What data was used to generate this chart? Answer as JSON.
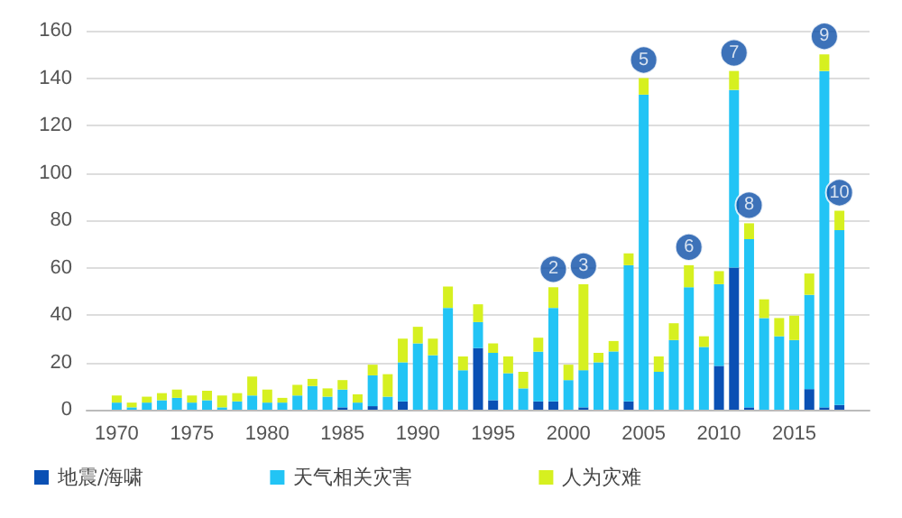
{
  "chart_data": {
    "type": "bar",
    "stacked": true,
    "x": [
      1970,
      1971,
      1972,
      1973,
      1974,
      1975,
      1976,
      1977,
      1978,
      1979,
      1980,
      1981,
      1982,
      1983,
      1984,
      1985,
      1986,
      1987,
      1988,
      1989,
      1990,
      1991,
      1992,
      1993,
      1994,
      1995,
      1996,
      1997,
      1998,
      1999,
      2000,
      2001,
      2002,
      2003,
      2004,
      2005,
      2006,
      2007,
      2008,
      2009,
      2010,
      2011,
      2012,
      2013,
      2014,
      2015,
      2016,
      2017,
      2018
    ],
    "series": [
      {
        "name": "地震/海啸",
        "color": "#0a50b4",
        "values": [
          0,
          0,
          0,
          0,
          0,
          0,
          0,
          0,
          0,
          0,
          0,
          0,
          0,
          0,
          0,
          1,
          0,
          1.5,
          0,
          3.5,
          0,
          0,
          0,
          0,
          26,
          4,
          0,
          0,
          3.5,
          3.5,
          0,
          1,
          0,
          0,
          3.5,
          0,
          0,
          0,
          0,
          0,
          18.5,
          60,
          1,
          0,
          0,
          0,
          8.7,
          1,
          2
        ]
      },
      {
        "name": "天气相关灾害",
        "color": "#22c4f5",
        "values": [
          3,
          1,
          3,
          4,
          5,
          3,
          4,
          1,
          3.5,
          6,
          3,
          3,
          6,
          10,
          5.5,
          7.5,
          3,
          13,
          5.5,
          16.5,
          28,
          23,
          43,
          16.7,
          11,
          20,
          15.4,
          9,
          21,
          39.5,
          12.5,
          15.7,
          20,
          24.6,
          57.5,
          133,
          16,
          29.4,
          51.7,
          26.5,
          34.5,
          75,
          71,
          38.7,
          31,
          29.4,
          39.8,
          142,
          73.8
        ]
      },
      {
        "name": "人为灾难",
        "color": "#d6f020",
        "values": [
          3,
          2,
          2.5,
          3,
          3.5,
          3,
          4,
          5,
          3.5,
          8,
          5.5,
          2,
          4.5,
          3,
          3.5,
          4,
          3.5,
          4.5,
          9.5,
          10,
          7,
          7,
          9,
          5.8,
          7.5,
          4,
          7.1,
          7,
          5.9,
          8.7,
          6.5,
          36.3,
          4,
          4.4,
          5,
          7,
          6.5,
          7.1,
          9.3,
          4.5,
          5.5,
          8,
          6.7,
          7.9,
          7.7,
          10.3,
          9,
          7,
          8.2
        ]
      }
    ],
    "xlim": [
      1968,
      2020
    ],
    "xticks": [
      1970,
      1975,
      1980,
      1985,
      1990,
      1995,
      2000,
      2005,
      2010,
      2015
    ],
    "ylim": [
      0,
      160
    ],
    "yticks": [
      0,
      20,
      40,
      60,
      80,
      100,
      120,
      140,
      160
    ],
    "grid": "y",
    "legend": "bottom left",
    "annotations": [
      {
        "text": "2",
        "x": 1999,
        "y": 51.7
      },
      {
        "text": "3",
        "x": 2001,
        "y": 53
      },
      {
        "text": "5",
        "x": 2005,
        "y": 140
      },
      {
        "text": "6",
        "x": 2008,
        "y": 61
      },
      {
        "text": "7",
        "x": 2011,
        "y": 143
      },
      {
        "text": "8",
        "x": 2012,
        "y": 78.7
      },
      {
        "text": "9",
        "x": 2017,
        "y": 150
      },
      {
        "text": "10",
        "x": 2018,
        "y": 84
      }
    ]
  }
}
